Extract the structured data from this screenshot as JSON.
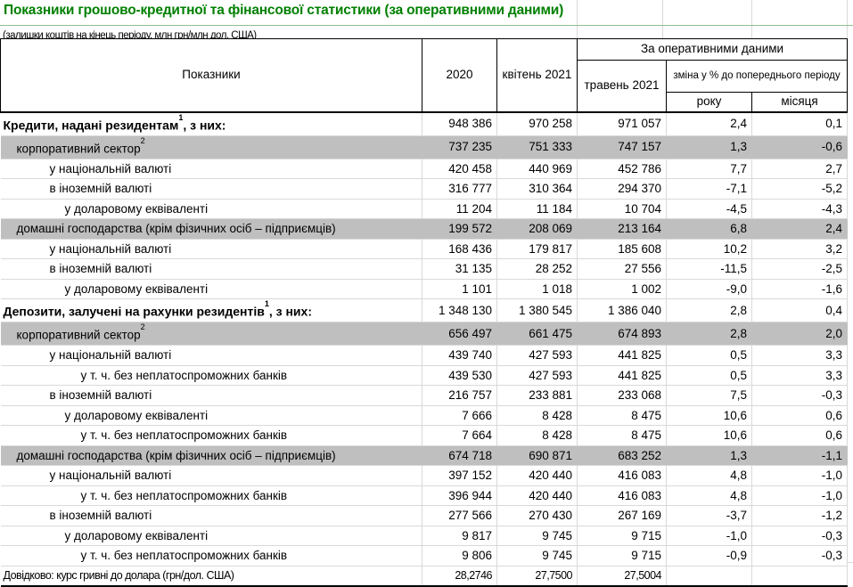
{
  "colors": {
    "title_green": "#008000",
    "gray_row_fill": "#bfbfbf",
    "grid_line": "#d9d9d9"
  },
  "title": "Показники грошово-кредитної та фінансової статистики (за оперативними даними)",
  "subtitle": "(залишки коштів на кінець періоду, млн грн/млн дол. США)",
  "table": {
    "col_header": {
      "indicators": "Показники",
      "year_2020": "2020",
      "april_2021": "квітень 2021",
      "operational_group": "За оперативними даними",
      "may_2021": "травень 2021",
      "change_pct": "зміна у % до попереднього періоду",
      "yoy": "року",
      "mom": "місяця"
    },
    "rows": [
      {
        "label": "Кредити, надані резидентам",
        "sup": "1",
        "suffix": ", з них:",
        "type": "main",
        "indent": 0,
        "values": [
          "948 386",
          "970 258",
          "971 057",
          "2,4",
          "0,1"
        ]
      },
      {
        "label": "корпоративний сектор",
        "sup": "2",
        "suffix": "",
        "type": "gray",
        "indent": 1,
        "values": [
          "737 235",
          "751 333",
          "747 157",
          "1,3",
          "-0,6"
        ]
      },
      {
        "label": "у національній валюті",
        "sup": "",
        "suffix": "",
        "type": "plain",
        "indent": 2,
        "values": [
          "420 458",
          "440 969",
          "452 786",
          "7,7",
          "2,7"
        ]
      },
      {
        "label": "в іноземній валюті",
        "sup": "",
        "suffix": "",
        "type": "plain",
        "indent": 2,
        "values": [
          "316 777",
          "310 364",
          "294 370",
          "-7,1",
          "-5,2"
        ]
      },
      {
        "label": "у доларовому еквіваленті",
        "sup": "",
        "suffix": "",
        "type": "plain",
        "indent": 3,
        "values": [
          "11 204",
          "11 184",
          "10 704",
          "-4,5",
          "-4,3"
        ]
      },
      {
        "label": "домашні господарства (крім фізичних осіб – підприємців)",
        "sup": "",
        "suffix": "",
        "type": "gray",
        "indent": 1,
        "values": [
          "199 572",
          "208 069",
          "213 164",
          "6,8",
          "2,4"
        ]
      },
      {
        "label": "у національній валюті",
        "sup": "",
        "suffix": "",
        "type": "plain",
        "indent": 2,
        "values": [
          "168 436",
          "179 817",
          "185 608",
          "10,2",
          "3,2"
        ]
      },
      {
        "label": "в іноземній валюті",
        "sup": "",
        "suffix": "",
        "type": "plain",
        "indent": 2,
        "values": [
          "31 135",
          "28 252",
          "27 556",
          "-11,5",
          "-2,5"
        ]
      },
      {
        "label": "у доларовому еквіваленті",
        "sup": "",
        "suffix": "",
        "type": "plain",
        "indent": 3,
        "values": [
          "1 101",
          "1 018",
          "1 002",
          "-9,0",
          "-1,6"
        ]
      },
      {
        "label": "Депозити, залучені на рахунки резидентів",
        "sup": "1",
        "suffix": ", з них:",
        "type": "main",
        "indent": 0,
        "values": [
          "1 348 130",
          "1 380 545",
          "1 386 040",
          "2,8",
          "0,4"
        ]
      },
      {
        "label": "корпоративний сектор",
        "sup": "2",
        "suffix": "",
        "type": "gray",
        "indent": 1,
        "values": [
          "656 497",
          "661 475",
          "674 893",
          "2,8",
          "2,0"
        ]
      },
      {
        "label": "у національній валюті",
        "sup": "",
        "suffix": "",
        "type": "plain",
        "indent": 2,
        "values": [
          "439 740",
          "427 593",
          "441 825",
          "0,5",
          "3,3"
        ]
      },
      {
        "label": "у т. ч. без неплатоспроможних банків",
        "sup": "",
        "suffix": "",
        "type": "plain",
        "indent": 4,
        "values": [
          "439 530",
          "427 593",
          "441 825",
          "0,5",
          "3,3"
        ]
      },
      {
        "label": "в іноземній валюті",
        "sup": "",
        "suffix": "",
        "type": "plain",
        "indent": 2,
        "values": [
          "216 757",
          "233 881",
          "233 068",
          "7,5",
          "-0,3"
        ]
      },
      {
        "label": "у доларовому еквіваленті",
        "sup": "",
        "suffix": "",
        "type": "plain",
        "indent": 3,
        "values": [
          "7 666",
          "8 428",
          "8 475",
          "10,6",
          "0,6"
        ]
      },
      {
        "label": "у т. ч. без неплатоспроможних банків",
        "sup": "",
        "suffix": "",
        "type": "plain",
        "indent": 4,
        "values": [
          "7 664",
          "8 428",
          "8 475",
          "10,6",
          "0,6"
        ]
      },
      {
        "label": "домашні господарства (крім фізичних осіб – підприємців)",
        "sup": "",
        "suffix": "",
        "type": "gray",
        "indent": 1,
        "values": [
          "674 718",
          "690 871",
          "683 252",
          "1,3",
          "-1,1"
        ]
      },
      {
        "label": "у національній валюті",
        "sup": "",
        "suffix": "",
        "type": "plain",
        "indent": 2,
        "values": [
          "397 152",
          "420 440",
          "416 083",
          "4,8",
          "-1,0"
        ]
      },
      {
        "label": "у т. ч. без неплатоспроможних банків",
        "sup": "",
        "suffix": "",
        "type": "plain",
        "indent": 4,
        "values": [
          "396 944",
          "420 440",
          "416 083",
          "4,8",
          "-1,0"
        ]
      },
      {
        "label": "в іноземній валюті",
        "sup": "",
        "suffix": "",
        "type": "plain",
        "indent": 2,
        "values": [
          "277 566",
          "270 430",
          "267 169",
          "-3,7",
          "-1,2"
        ]
      },
      {
        "label": "у доларовому еквіваленті",
        "sup": "",
        "suffix": "",
        "type": "plain",
        "indent": 3,
        "values": [
          "9 817",
          "9 745",
          "9 715",
          "-1,0",
          "-0,3"
        ]
      },
      {
        "label": "у т. ч. без неплатоспроможних банків",
        "sup": "",
        "suffix": "",
        "type": "plain",
        "indent": 4,
        "values": [
          "9 806",
          "9 745",
          "9 715",
          "-0,9",
          "-0,3"
        ]
      },
      {
        "label": "Довідково: курс гривні до долара (грн/дол. США)",
        "sup": "",
        "suffix": "",
        "type": "note",
        "indent": 0,
        "values": [
          "28,2746",
          "27,7500",
          "27,5004",
          "",
          ""
        ]
      }
    ]
  }
}
